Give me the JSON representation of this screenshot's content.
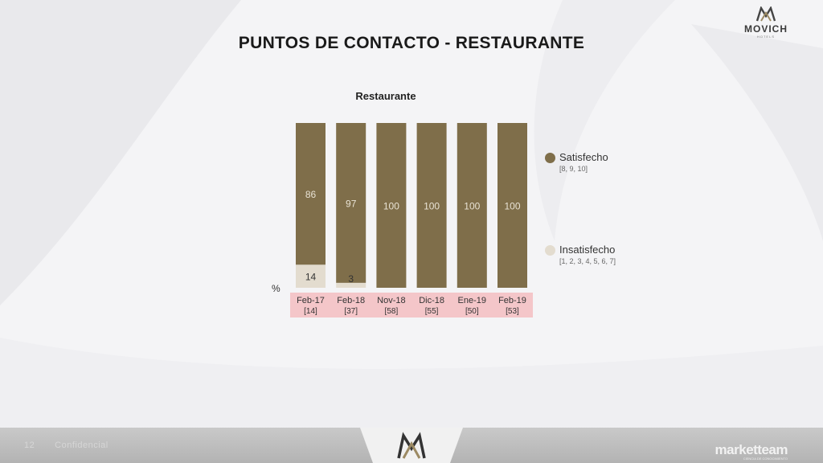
{
  "header": {
    "title": "PUNTOS DE CONTACTO - RESTAURANTE",
    "brand_name": "MOVICH",
    "brand_sub": "HOTELS"
  },
  "chart_data": {
    "type": "bar",
    "stacked": true,
    "title": "Restaurante",
    "unit_label": "%",
    "categories": [
      "Feb-17",
      "Feb-18",
      "Nov-18",
      "Dic-18",
      "Ene-19",
      "Feb-19"
    ],
    "sample_sizes": [
      "[14]",
      "[37]",
      "[58]",
      "[55]",
      "[50]",
      "[53]"
    ],
    "series": [
      {
        "name": "Insatisfecho",
        "subtitle": "[1, 2, 3, 4, 5, 6, 7]",
        "values": [
          14,
          3,
          0,
          0,
          0,
          0
        ],
        "color": "#e3dccf"
      },
      {
        "name": "Satisfecho",
        "subtitle": "[8, 9, 10]",
        "values": [
          86,
          97,
          100,
          100,
          100,
          100
        ],
        "color": "#7f6e4a"
      }
    ],
    "ylim": [
      0,
      100
    ],
    "grid": false,
    "legend_position": "right"
  },
  "footer": {
    "page_number": "12",
    "left_text": "Confidencial",
    "right_brand": "marketteam",
    "right_sub": "CIENCIA DE CONOCIMIENTO"
  }
}
